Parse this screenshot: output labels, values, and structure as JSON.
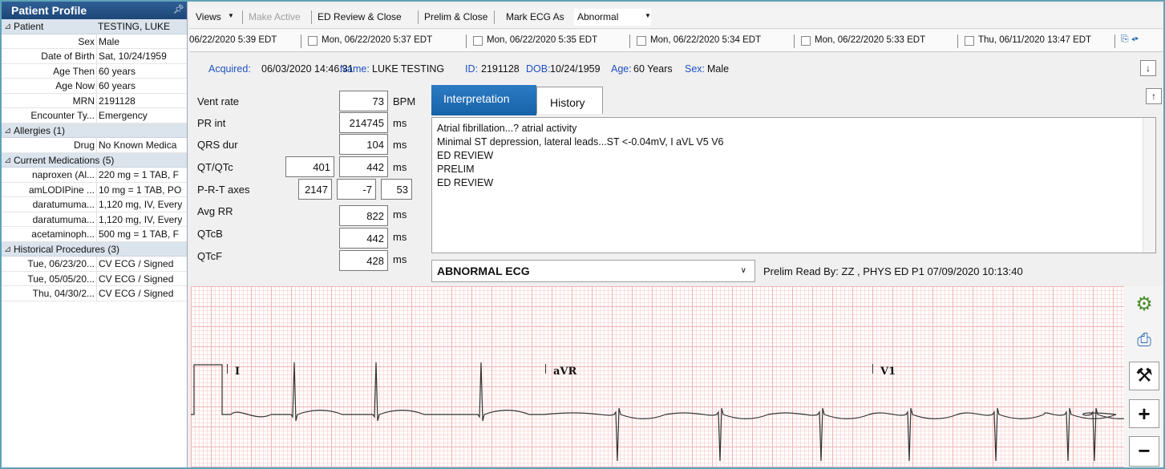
{
  "left_panel": {
    "title": "Patient Profile",
    "sections": [
      {
        "title": "Patient",
        "value": "TESTING, LUKE",
        "rows": [
          {
            "label": "Sex",
            "value": "Male"
          },
          {
            "label": "Date of Birth",
            "value": "Sat, 10/24/1959"
          },
          {
            "label": "Age Then",
            "value": "60 years"
          },
          {
            "label": "Age Now",
            "value": "60 years"
          },
          {
            "label": "MRN",
            "value": "2191128"
          },
          {
            "label": "Encounter Ty...",
            "value": "Emergency"
          }
        ]
      },
      {
        "title": "Allergies (1)",
        "rows": [
          {
            "label": "Drug",
            "value": "No Known Medica"
          }
        ]
      },
      {
        "title": "Current Medications (5)",
        "rows": [
          {
            "label": "naproxen (Al...",
            "value": "220 mg = 1 TAB, F"
          },
          {
            "label": "amLODIPine ...",
            "value": "10 mg = 1 TAB, PO"
          },
          {
            "label": "daratumuma...",
            "value": "1,120 mg, IV, Every"
          },
          {
            "label": "daratumuma...",
            "value": "1,120 mg, IV, Every"
          },
          {
            "label": "acetaminoph...",
            "value": "500 mg = 1 TAB, F"
          }
        ]
      },
      {
        "title": "Historical Procedures (3)",
        "rows": [
          {
            "label": "Tue, 06/23/20...",
            "value": "CV ECG / Signed"
          },
          {
            "label": "Tue, 05/05/20...",
            "value": "CV ECG / Signed"
          },
          {
            "label": "Thu, 04/30/2...",
            "value": "CV ECG / Signed"
          }
        ]
      }
    ]
  },
  "toolbar": {
    "buttons": [
      "Views",
      "Make Active",
      "ED Review & Close",
      "Prelim & Close"
    ],
    "mark_label": "Mark ECG As",
    "mark_value": "Abnormal"
  },
  "date_tabs": [
    "06/22/2020 5:39 EDT",
    "Mon, 06/22/2020 5:37 EDT",
    "Mon, 06/22/2020 5:35 EDT",
    "Mon, 06/22/2020 5:34 EDT",
    "Mon, 06/22/2020 5:33 EDT",
    "Thu, 06/11/2020 13:47 EDT"
  ],
  "header_info": [
    {
      "label": "Acquired:",
      "value": "06/03/2020 14:46:31"
    },
    {
      "label": "Name:",
      "value": "LUKE TESTING"
    },
    {
      "label": "ID:",
      "value": "2191128"
    },
    {
      "label": "DOB:",
      "value": "10/24/1959"
    },
    {
      "label": "Age:",
      "value": "60 Years"
    },
    {
      "label": "Sex:",
      "value": "Male"
    }
  ],
  "measurements": [
    {
      "label": "Vent rate",
      "values": [
        73
      ],
      "unit": "BPM"
    },
    {
      "label": "PR int",
      "values": [
        214745
      ],
      "unit": "ms"
    },
    {
      "label": "QRS dur",
      "values": [
        104
      ],
      "unit": "ms"
    },
    {
      "label": "QT/QTc",
      "values": [
        401,
        442
      ],
      "unit": "ms"
    },
    {
      "label": "P-R-T axes",
      "values": [
        2147,
        -7,
        53
      ]
    },
    {
      "label": "Avg RR",
      "values": [
        822
      ],
      "unit": "ms"
    },
    {
      "label": "QTcB",
      "values": [
        442
      ],
      "unit": "ms"
    },
    {
      "label": "QTcF",
      "values": [
        428
      ],
      "unit": "ms"
    }
  ],
  "interpretation": {
    "tabs": [
      "Interpretation",
      "History"
    ],
    "lines": [
      "Atrial fibrillation...? atrial activity",
      "Minimal ST depression, lateral leads...ST <-0.04mV, I aVL V5 V6",
      "ED REVIEW",
      "PRELIM",
      "ED REVIEW"
    ],
    "statement": "ABNORMAL ECG",
    "prelim_read": "Prelim Read By: ZZ , PHYS ED P1 07/09/2020 10:13:40"
  },
  "ecg": {
    "leads": [
      "I",
      "aVR",
      "V1"
    ]
  }
}
